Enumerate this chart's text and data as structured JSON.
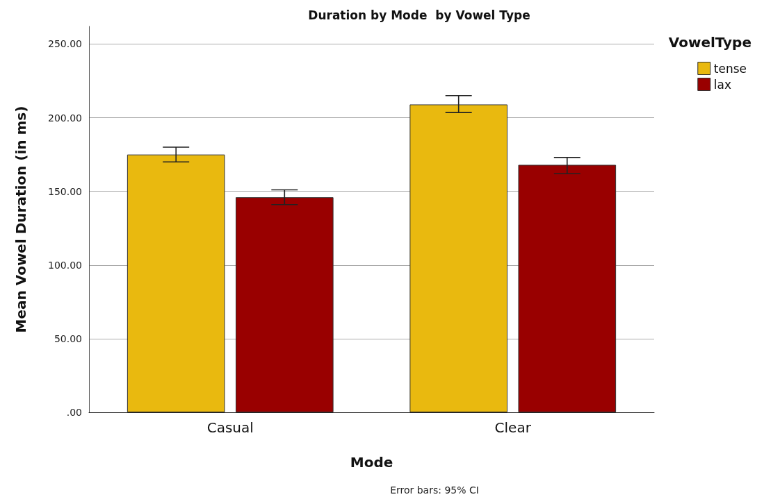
{
  "chart_data": {
    "type": "bar",
    "title": "Duration by Mode  by Vowel Type",
    "xlabel": "Mode",
    "ylabel": "Mean Vowel Duration (in ms)",
    "legend_title": "VowelType",
    "annotations": [
      "Error bars: 95% CI"
    ],
    "categories": [
      "Casual",
      "Clear"
    ],
    "series": [
      {
        "name": "tense",
        "color": "#e9b90f",
        "values": [
          175,
          209
        ],
        "errors": [
          [
            170,
            180
          ],
          [
            203.5,
            215
          ]
        ]
      },
      {
        "name": "lax",
        "color": "#990000",
        "values": [
          146,
          168
        ],
        "errors": [
          [
            141,
            151
          ],
          [
            162,
            173
          ]
        ]
      }
    ],
    "ylim": [
      0,
      262
    ],
    "yticks": [
      {
        "value": 0,
        "label": ".00"
      },
      {
        "value": 50,
        "label": "50.00"
      },
      {
        "value": 100,
        "label": "100.00"
      },
      {
        "value": 150,
        "label": "150.00"
      },
      {
        "value": 200,
        "label": "200.00"
      },
      {
        "value": 250,
        "label": "250.00"
      }
    ],
    "grid": "y",
    "legend": "top right"
  }
}
